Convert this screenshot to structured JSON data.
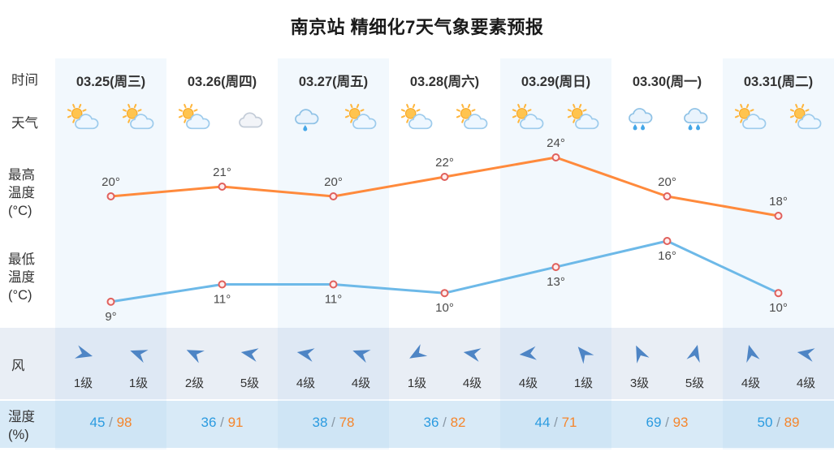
{
  "title": "南京站 精细化7天气象要素预报",
  "row_labels": {
    "time": "时间",
    "weather": "天气",
    "tmax": "最高\n温度\n(°C)",
    "tmin": "最低\n温度\n(°C)",
    "wind": "风",
    "humidity": "湿度\n(%)"
  },
  "colors": {
    "marker_ring": "#e0605c",
    "marker_fill": "#ffeded",
    "wind_arrow": "#4e85c5",
    "humidity_low": "#2b9be0",
    "humidity_high": "#f5862d",
    "humidity_separator": "#8a99a6",
    "wind_row_bg": "#e9eef5",
    "humidity_row_bg": "#d8eaf7",
    "column_stripe": "rgba(126,189,233,0.10)"
  },
  "days": [
    {
      "date": "03.25(周三)",
      "icons": [
        "sun-cloud",
        "sun-cloud"
      ],
      "wind": {
        "angles": [
          15,
          200
        ],
        "levels": [
          "1级",
          "1级"
        ]
      },
      "humidity": {
        "low": 45,
        "high": 98
      }
    },
    {
      "date": "03.26(周四)",
      "icons": [
        "sun-cloud",
        "cloud"
      ],
      "wind": {
        "angles": [
          205,
          190
        ],
        "levels": [
          "2级",
          "5级"
        ]
      },
      "humidity": {
        "low": 36,
        "high": 91
      }
    },
    {
      "date": "03.27(周五)",
      "icons": [
        "rain-light",
        "sun-cloud"
      ],
      "wind": {
        "angles": [
          190,
          200
        ],
        "levels": [
          "4级",
          "4级"
        ]
      },
      "humidity": {
        "low": 38,
        "high": 78
      }
    },
    {
      "date": "03.28(周六)",
      "icons": [
        "sun-cloud",
        "sun-cloud"
      ],
      "wind": {
        "angles": [
          150,
          190
        ],
        "levels": [
          "1级",
          "4级"
        ]
      },
      "humidity": {
        "low": 36,
        "high": 82
      }
    },
    {
      "date": "03.29(周日)",
      "icons": [
        "sun-cloud",
        "sun-cloud"
      ],
      "wind": {
        "angles": [
          175,
          230
        ],
        "levels": [
          "4级",
          "1级"
        ]
      },
      "humidity": {
        "low": 44,
        "high": 71
      }
    },
    {
      "date": "03.30(周一)",
      "icons": [
        "rain",
        "rain"
      ],
      "wind": {
        "angles": [
          245,
          285
        ],
        "levels": [
          "3级",
          "5级"
        ]
      },
      "humidity": {
        "low": 69,
        "high": 93
      }
    },
    {
      "date": "03.31(周二)",
      "icons": [
        "sun-cloud",
        "sun-cloud"
      ],
      "wind": {
        "angles": [
          255,
          190
        ],
        "levels": [
          "4级",
          "4级"
        ]
      },
      "humidity": {
        "low": 50,
        "high": 89
      }
    }
  ],
  "chart_data": {
    "type": "line",
    "title": "南京站 精细化7天气象要素预报",
    "categories": [
      "03.25(周三)",
      "03.26(周四)",
      "03.27(周五)",
      "03.28(周六)",
      "03.29(周日)",
      "03.30(周一)",
      "03.31(周二)"
    ],
    "series": [
      {
        "name": "最高温度(°C)",
        "color": "#ff8a3c",
        "values": [
          20,
          21,
          20,
          22,
          24,
          20,
          18
        ]
      },
      {
        "name": "最低温度(°C)",
        "color": "#6db9e8",
        "values": [
          9,
          11,
          11,
          10,
          13,
          16,
          10
        ]
      }
    ],
    "unit": "°C",
    "ylim": [
      5,
      27
    ],
    "grid": false,
    "legend": "none",
    "point_labels": true
  }
}
